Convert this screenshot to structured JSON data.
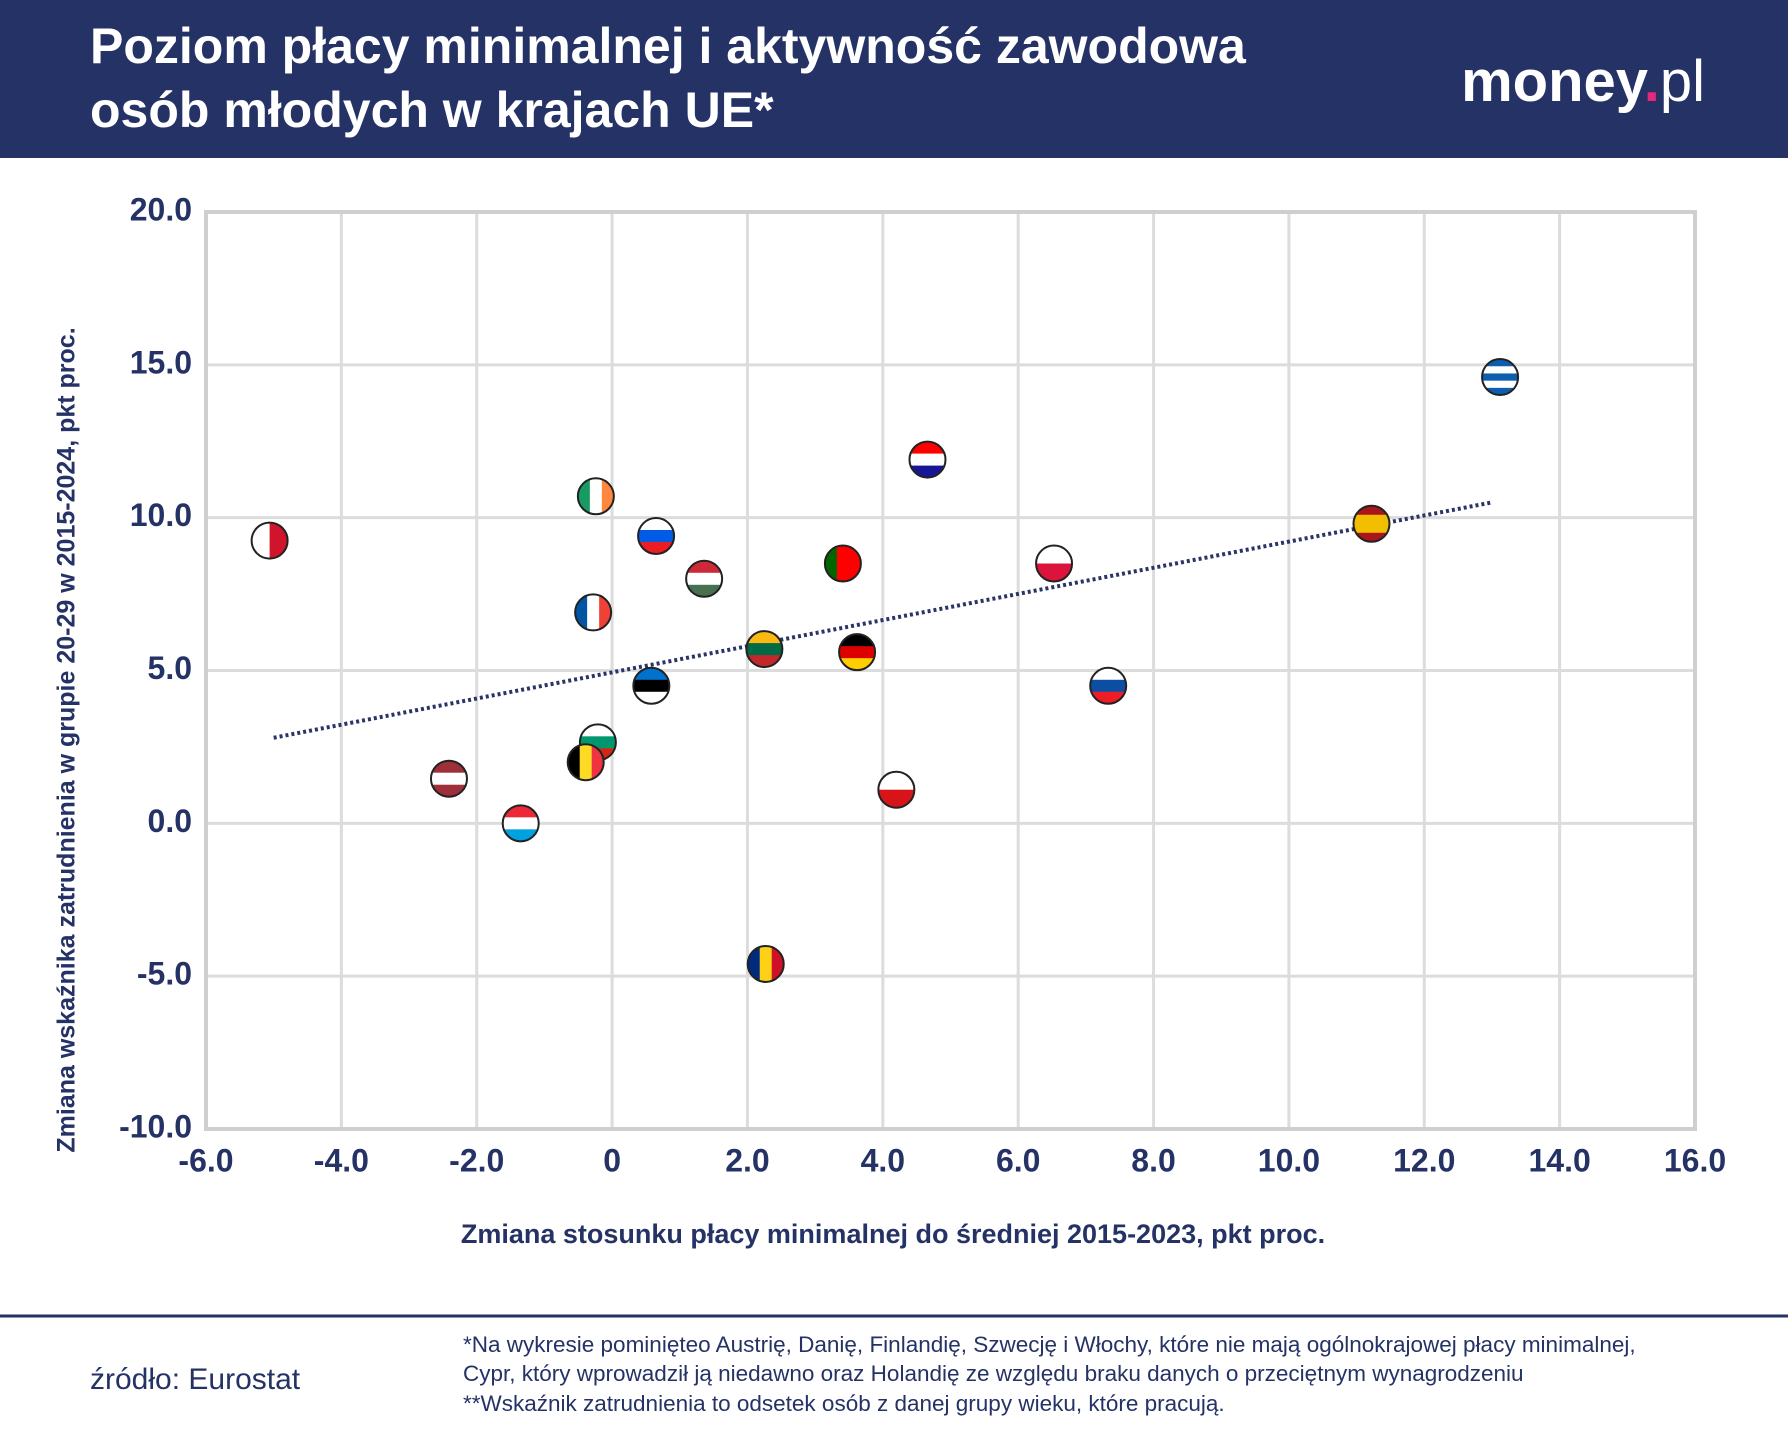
{
  "header": {
    "title_lines": [
      "Poziom płacy minimalnej i aktywność zawodowa",
      "osób młodych w krajach UE*"
    ],
    "logo": [
      "money",
      ".",
      "pl"
    ]
  },
  "chart_data": {
    "type": "scatter",
    "xlabel": "Zmiana stosunku płacy minimalnej do średniej 2015-2023, pkt proc.",
    "ylabel": "Zmiana wskaźnika zatrudnienia w grupie 20-29 w 2015-2024, pkt proc.",
    "x": [
      -5.06,
      -2.41,
      -1.35,
      -0.24,
      -0.28,
      -0.21,
      -0.39,
      0.65,
      0.58,
      1.36,
      2.25,
      2.27,
      3.41,
      3.62,
      4.2,
      4.66,
      6.53,
      7.33,
      11.22,
      13.12
    ],
    "values": [
      9.25,
      1.46,
      0,
      10.7,
      6.9,
      2.65,
      2.0,
      9.4,
      4.5,
      8.0,
      5.7,
      -4.6,
      8.5,
      5.6,
      1.1,
      11.9,
      8.5,
      4.5,
      9.8,
      14.6
    ],
    "point_colors": [
      [
        "#ffffff",
        "#cf142b"
      ],
      [
        "#9e3039",
        "#ffffff",
        "#9e3039"
      ],
      [
        "#ed2939",
        "#ffffff",
        "#00a1de"
      ],
      [
        "#169b62",
        "#ffffff",
        "#ff883e"
      ],
      [
        "#0055a4",
        "#ffffff",
        "#ef4135"
      ],
      [
        "#ffffff",
        "#00966e",
        "#d62612"
      ],
      [
        "#000000",
        "#fdda24",
        "#ef3340"
      ],
      [
        "#ffffff",
        "#005ce5",
        "#ed1c24"
      ],
      [
        "#0072ce",
        "#000000",
        "#ffffff"
      ],
      [
        "#ce2939",
        "#ffffff",
        "#477050"
      ],
      [
        "#fdb913",
        "#006a44",
        "#c1272d"
      ],
      [
        "#002b7f",
        "#fcd116",
        "#ce1126"
      ],
      [
        "#006600",
        "#ff0000",
        "#ff0000"
      ],
      [
        "#000000",
        "#dd0000",
        "#ffce00"
      ],
      [
        "#ffffff",
        "#d7141a"
      ],
      [
        "#ff0000",
        "#ffffff",
        "#171796"
      ],
      [
        "#ffffff",
        "#dc143c"
      ],
      [
        "#ffffff",
        "#0b4ea2",
        "#ee1c25"
      ],
      [
        "#aa151b",
        "#f1bf00",
        "#f1bf00",
        "#aa151b"
      ],
      [
        "#0d5eaf",
        "#ffffff",
        "#0d5eaf",
        "#ffffff",
        "#0d5eaf"
      ]
    ],
    "point_stripes": [
      "v",
      "h",
      "h",
      "v",
      "v",
      "h",
      "v",
      "h",
      "h",
      "h",
      "h",
      "v",
      "v",
      "h",
      "h",
      "h",
      "h",
      "h",
      "h",
      "h"
    ],
    "trendline": {
      "x": [
        -5,
        13
      ],
      "y": [
        2.8,
        10.5
      ],
      "color": "#2b3466"
    },
    "xlim": [
      -6,
      16
    ],
    "xticks": [
      {
        "value": -6,
        "label": "-6.0"
      },
      {
        "value": -4,
        "label": "-4.0"
      },
      {
        "value": -2,
        "label": "-2.0"
      },
      0,
      {
        "value": 2,
        "label": "2.0"
      },
      {
        "value": 4,
        "label": "4.0"
      },
      {
        "value": 6,
        "label": "6.0"
      },
      {
        "value": 8,
        "label": "8.0"
      },
      {
        "value": 10,
        "label": "10.0"
      },
      {
        "value": 12,
        "label": "12.0"
      },
      {
        "value": 14,
        "label": "14.0"
      },
      {
        "value": 16,
        "label": "16.0"
      }
    ],
    "ylim": [
      -10,
      20
    ],
    "yticks": [
      {
        "value": -10,
        "label": "-10.0"
      },
      {
        "value": -5,
        "label": "-5.0"
      },
      {
        "value": 0,
        "label": "0.0"
      },
      {
        "value": 5,
        "label": "5.0"
      },
      {
        "value": 10,
        "label": "10.0"
      },
      {
        "value": 15,
        "label": "15.0"
      },
      {
        "value": 20,
        "label": "20.0"
      }
    ],
    "grid": true
  },
  "footer": {
    "source": "źródło: Eurostat",
    "notes": [
      "*Na wykresie pominięteo Austrię, Danię, Finlandię, Szwecję i Włochy, które nie mają ogólnokrajowej płacy minimalnej,",
      "Cypr, który wprowadził ją niedawno oraz Holandię ze względu braku danych o przeciętnym wynagrodzeniu",
      "**Wskaźnik zatrudnienia to odsetek osób z danej grupy wieku, które pracują."
    ]
  }
}
